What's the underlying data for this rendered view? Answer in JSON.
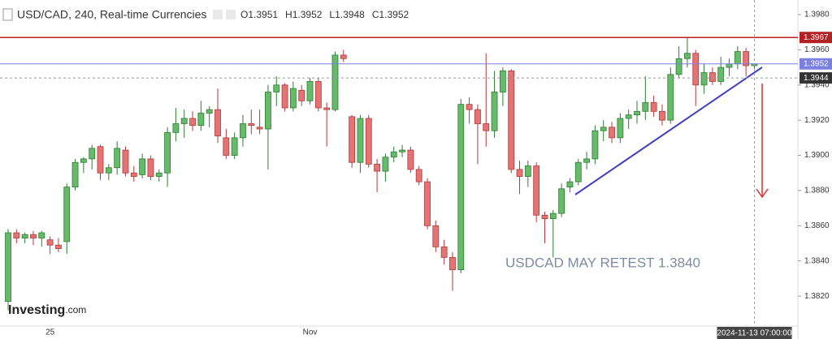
{
  "chart_data": {
    "type": "candlestick",
    "title": "USD/CAD, 240, Real-time Currencies",
    "ohlc_labels": [
      "O1.3951",
      "H1.3952",
      "L1.3948",
      "C1.3952"
    ],
    "annotation": "USDCAD MAY RETEST 1.3840",
    "logo": [
      "Investing",
      ".com"
    ],
    "crosshair_label": "2024-11-13 07:00:00",
    "up_color": "#66bb6a",
    "down_color": "#e57373",
    "ylim": [
      1.3803,
      1.3986
    ],
    "yticks": [
      {
        "value": 1.398,
        "label": "1.3980"
      },
      {
        "value": 1.396,
        "label": "1.3960"
      },
      {
        "value": 1.394,
        "label": "1.3940"
      },
      {
        "value": 1.392,
        "label": "1.3920"
      },
      {
        "value": 1.39,
        "label": "1.3900"
      },
      {
        "value": 1.388,
        "label": "1.3880"
      },
      {
        "value": 1.386,
        "label": "1.3860"
      },
      {
        "value": 1.384,
        "label": "1.3840"
      },
      {
        "value": 1.382,
        "label": "1.3820"
      }
    ],
    "levels": [
      {
        "value": 1.3967,
        "color": "#b22222",
        "style": "solid"
      },
      {
        "value": 1.3952,
        "color": "#7b7fe0",
        "style": "solid"
      },
      {
        "value": 1.3944,
        "color": "#999999",
        "style": "dashed"
      }
    ],
    "categories": [
      null,
      null,
      null,
      null,
      null,
      "25",
      null,
      null,
      null,
      null,
      null,
      null,
      null,
      null,
      null,
      null,
      null,
      null,
      null,
      null,
      null,
      null,
      null,
      null,
      null,
      null,
      null,
      null,
      null,
      null,
      null,
      null,
      null,
      null,
      null,
      null,
      "Nov",
      null,
      null,
      null,
      null,
      null,
      null,
      null,
      null,
      null,
      null,
      null,
      null,
      null,
      null,
      null,
      null,
      null,
      null,
      null,
      null,
      null,
      null,
      null,
      null,
      null,
      null,
      null,
      null,
      null,
      null,
      null,
      null,
      null,
      null,
      null,
      null,
      null,
      null,
      null,
      null,
      null,
      null,
      null,
      null,
      null,
      null,
      null,
      null,
      null,
      null,
      null,
      null,
      null
    ],
    "open": [
      1.3817,
      1.3856,
      1.3853,
      1.3855,
      1.3853,
      1.3852,
      1.3849,
      1.3851,
      1.3882,
      1.3896,
      1.3898,
      1.3905,
      1.389,
      1.3893,
      1.3903,
      1.389,
      1.3889,
      1.3898,
      1.3888,
      1.389,
      1.3913,
      1.3918,
      1.3921,
      1.3917,
      1.3924,
      1.3926,
      1.391,
      1.39,
      1.391,
      1.3918,
      1.3916,
      1.3915,
      1.3936,
      1.394,
      1.3927,
      1.3937,
      1.3931,
      1.3942,
      1.3927,
      1.3926,
      1.3957,
      1.3922,
      1.3896,
      1.3921,
      1.3895,
      1.3891,
      1.3899,
      1.3902,
      1.3903,
      1.3892,
      1.3885,
      1.386,
      1.3848,
      1.3842,
      1.3835,
      1.3929,
      1.3926,
      1.3918,
      1.3914,
      1.3936,
      1.3948,
      1.3892,
      1.3888,
      1.3894,
      1.3866,
      1.3864,
      1.3867,
      1.3882,
      1.3885,
      1.3896,
      1.3898,
      1.3914,
      1.3916,
      1.391,
      1.3921,
      1.3923,
      1.3925,
      1.393,
      1.3925,
      1.392,
      1.3946,
      1.3955,
      1.3958,
      1.394,
      1.3947,
      1.3942,
      1.395,
      1.3952,
      1.3959,
      1.3951
    ],
    "high": [
      1.3858,
      1.3858,
      1.3856,
      1.3857,
      1.3857,
      1.3854,
      1.3853,
      1.3884,
      1.3898,
      1.3899,
      1.3906,
      1.3906,
      1.3895,
      1.3908,
      1.3905,
      1.3894,
      1.3901,
      1.39,
      1.3892,
      1.3916,
      1.3927,
      1.3926,
      1.3925,
      1.3931,
      1.3928,
      1.3938,
      1.3915,
      1.3913,
      1.3923,
      1.3926,
      1.3926,
      1.394,
      1.3945,
      1.3941,
      1.3942,
      1.394,
      1.3944,
      1.3944,
      1.393,
      1.3959,
      1.396,
      1.3923,
      1.3923,
      1.3923,
      1.3898,
      1.3901,
      1.3905,
      1.3906,
      1.3905,
      1.3894,
      1.3887,
      1.3863,
      1.3852,
      1.3845,
      1.3932,
      1.3933,
      1.3929,
      1.3958,
      1.3948,
      1.395,
      1.3949,
      1.3897,
      1.3897,
      1.3896,
      1.3868,
      1.3869,
      1.3884,
      1.3887,
      1.3898,
      1.3902,
      1.3917,
      1.392,
      1.3919,
      1.3924,
      1.3926,
      1.3931,
      1.3945,
      1.3934,
      1.3929,
      1.395,
      1.3962,
      1.3967,
      1.396,
      1.3952,
      1.395,
      1.3956,
      1.3955,
      1.3962,
      1.3961,
      1.3952
    ],
    "low": [
      1.3812,
      1.385,
      1.385,
      1.3849,
      1.3848,
      1.3844,
      1.3845,
      1.3844,
      1.388,
      1.389,
      1.3892,
      1.3886,
      1.3886,
      1.3889,
      1.3888,
      1.3885,
      1.3887,
      1.3886,
      1.3885,
      1.3882,
      1.3908,
      1.391,
      1.3914,
      1.3914,
      1.3916,
      1.3907,
      1.3898,
      1.3898,
      1.3905,
      1.3912,
      1.3912,
      1.3892,
      1.3928,
      1.3925,
      1.3925,
      1.3928,
      1.3929,
      1.3925,
      1.3905,
      1.3925,
      1.3953,
      1.3893,
      1.389,
      1.3893,
      1.3879,
      1.3885,
      1.3896,
      1.3899,
      1.389,
      1.3883,
      1.3858,
      1.3845,
      1.3838,
      1.3823,
      1.3833,
      1.3918,
      1.3895,
      1.3905,
      1.391,
      1.3928,
      1.389,
      1.3878,
      1.3882,
      1.3862,
      1.385,
      1.3842,
      1.3865,
      1.3879,
      1.3883,
      1.3892,
      1.3895,
      1.3908,
      1.3907,
      1.3907,
      1.3915,
      1.3918,
      1.392,
      1.3922,
      1.3917,
      1.3918,
      1.3944,
      1.395,
      1.3928,
      1.3935,
      1.394,
      1.394,
      1.3945,
      1.3949,
      1.3945,
      1.3948
    ],
    "close": [
      1.3856,
      1.3853,
      1.3855,
      1.3853,
      1.3856,
      1.3849,
      1.3847,
      1.3882,
      1.3896,
      1.3898,
      1.3904,
      1.389,
      1.3893,
      1.3904,
      1.389,
      1.3888,
      1.3898,
      1.3888,
      1.389,
      1.3913,
      1.3918,
      1.3921,
      1.3917,
      1.3924,
      1.3926,
      1.3911,
      1.39,
      1.391,
      1.3918,
      1.3917,
      1.3915,
      1.3936,
      1.394,
      1.3927,
      1.3938,
      1.3931,
      1.3942,
      1.3927,
      1.3926,
      1.3957,
      1.3955,
      1.3896,
      1.3921,
      1.3895,
      1.3891,
      1.3899,
      1.3902,
      1.3903,
      1.3892,
      1.3885,
      1.386,
      1.3848,
      1.3842,
      1.3835,
      1.3929,
      1.3926,
      1.3918,
      1.3914,
      1.3936,
      1.3948,
      1.3892,
      1.3888,
      1.3894,
      1.3866,
      1.3864,
      1.3867,
      1.3881,
      1.3885,
      1.3896,
      1.3898,
      1.3914,
      1.3916,
      1.391,
      1.3921,
      1.3923,
      1.3925,
      1.393,
      1.3925,
      1.392,
      1.3946,
      1.3955,
      1.3958,
      1.394,
      1.3947,
      1.3942,
      1.395,
      1.3952,
      1.3959,
      1.3951,
      1.3952
    ]
  }
}
